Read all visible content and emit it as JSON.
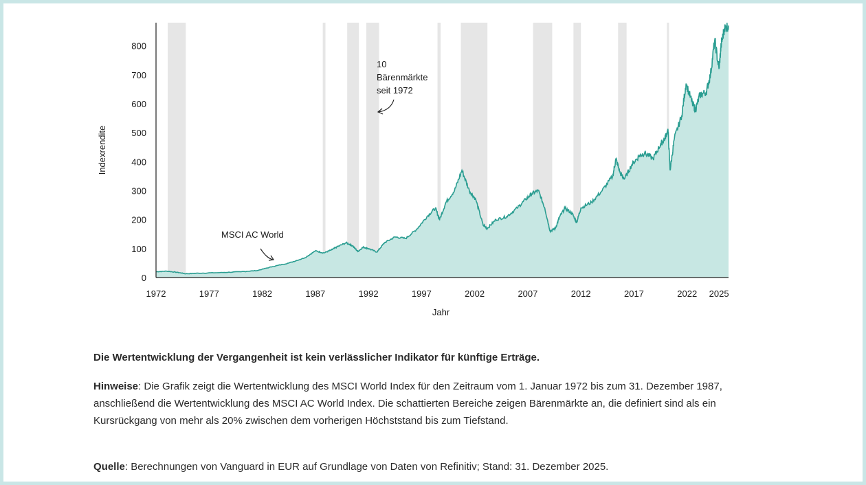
{
  "colors": {
    "frame": "#c9e6e6",
    "area_fill": "#c7e7e3",
    "line": "#2a9d91",
    "bear_shade": "#c8c8c8"
  },
  "chart_data": {
    "type": "area",
    "title": "",
    "xlabel": "Jahr",
    "ylabel": "Indexrendite",
    "xlim": [
      1972,
      2025.9
    ],
    "ylim": [
      0,
      880
    ],
    "x_ticks": [
      1972,
      1977,
      1982,
      1987,
      1992,
      1997,
      2002,
      2007,
      2012,
      2017,
      2022,
      2025
    ],
    "y_ticks": [
      0,
      100,
      200,
      300,
      400,
      500,
      600,
      700,
      800
    ],
    "series": [
      {
        "name": "MSCI AC World",
        "x": [
          1972,
          1973,
          1974,
          1974.8,
          1976,
          1978,
          1980,
          1981.5,
          1983,
          1984.5,
          1986,
          1987,
          1987.8,
          1988.5,
          1989,
          1989.9,
          1990.5,
          1991,
          1991.5,
          1992,
          1992.8,
          1993.5,
          1994.5,
          1995.5,
          1996.5,
          1997.5,
          1998.3,
          1998.7,
          1999.3,
          2000.1,
          2000.8,
          2001.5,
          2002.1,
          2002.8,
          2003.2,
          2004,
          2005,
          2006,
          2006.8,
          2007.4,
          2008,
          2008.6,
          2009.1,
          2009.6,
          2010,
          2010.5,
          2011.2,
          2011.6,
          2012,
          2013,
          2014,
          2015,
          2015.3,
          2015.7,
          2016.1,
          2016.8,
          2017.5,
          2018,
          2018.8,
          2019.5,
          2019.9,
          2020.2,
          2020.4,
          2020.8,
          2021.5,
          2021.9,
          2022.5,
          2022.8,
          2023.2,
          2023.8,
          2024.2,
          2024.6,
          2025,
          2025.2,
          2025.5,
          2025.9
        ],
        "values": [
          20,
          22,
          18,
          13,
          15,
          17,
          20,
          24,
          38,
          50,
          68,
          92,
          85,
          95,
          105,
          120,
          110,
          90,
          105,
          100,
          88,
          120,
          140,
          135,
          165,
          210,
          240,
          200,
          260,
          300,
          370,
          300,
          270,
          180,
          170,
          200,
          210,
          240,
          270,
          290,
          300,
          240,
          160,
          170,
          210,
          240,
          220,
          190,
          240,
          260,
          300,
          350,
          410,
          360,
          340,
          390,
          420,
          430,
          410,
          460,
          480,
          510,
          370,
          480,
          560,
          670,
          600,
          580,
          630,
          640,
          700,
          820,
          720,
          800,
          860,
          870
        ]
      }
    ],
    "bear_markets": [
      [
        1973.1,
        1974.8
      ],
      [
        1987.7,
        1987.95
      ],
      [
        1990.0,
        1991.1
      ],
      [
        1991.8,
        1993.0
      ],
      [
        1998.5,
        1998.8
      ],
      [
        2000.7,
        2003.2
      ],
      [
        2007.5,
        2009.3
      ],
      [
        2011.3,
        2012.0
      ],
      [
        2015.5,
        2016.3
      ],
      [
        2020.1,
        2020.25
      ]
    ],
    "annotations": {
      "series_label": "MSCI AC World",
      "bear_count": "10",
      "bear_word": "Bärenmärkte",
      "bear_since": "seit 1972"
    }
  },
  "text": {
    "disclaimer": "Die Wertentwicklung der Vergangenheit ist kein verlässlicher Indikator für künftige Erträge.",
    "notes_label": "Hinweise",
    "notes_text": ": Die Grafik zeigt die Wertentwicklung des MSCI World Index für den Zeitraum vom 1. Januar 1972 bis zum 31. Dezember 1987, anschließend die Wertentwicklung des MSCI AC World Index. Die schattierten Bereiche zeigen Bärenmärkte an, die definiert sind als ein Kursrückgang von mehr als 20% zwischen dem vorherigen Höchststand bis zum Tiefstand.",
    "source_label": "Quelle",
    "source_text": ": Berechnungen von Vanguard in EUR auf Grundlage von Daten von Refinitiv; Stand: 31. Dezember 2025."
  }
}
